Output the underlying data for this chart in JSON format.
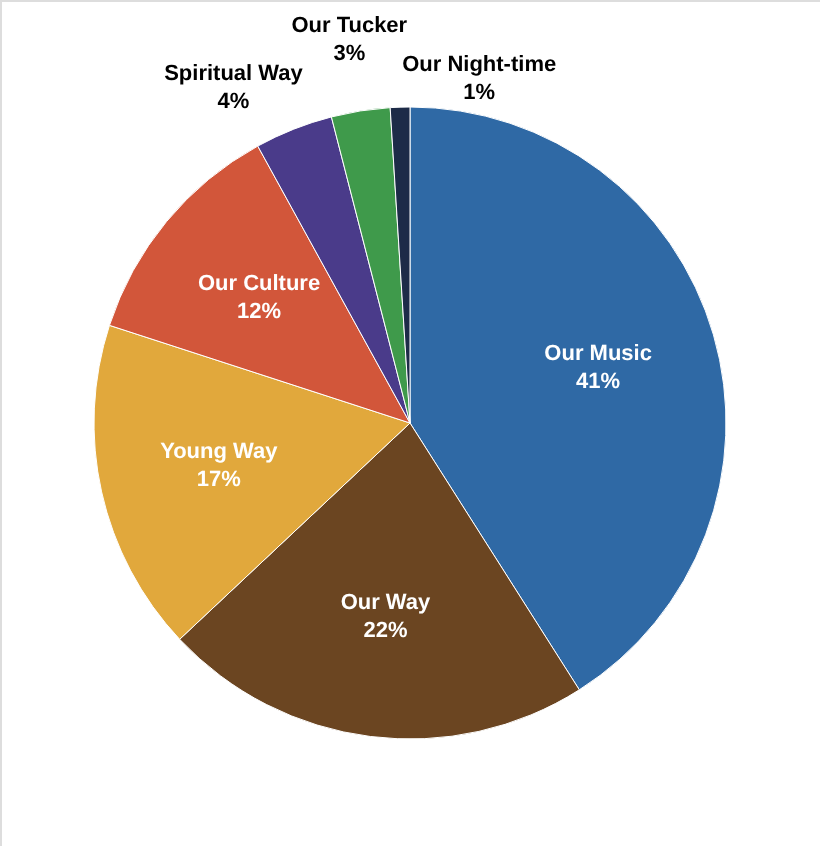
{
  "chart_data": {
    "type": "pie",
    "categories": [
      "Our Music",
      "Our Way",
      "Young Way",
      "Our Culture",
      "Spiritual Way",
      "Our Tucker",
      "Our Night-time"
    ],
    "values": [
      41,
      22,
      17,
      12,
      4,
      3,
      1
    ],
    "value_labels": [
      "41%",
      "22%",
      "17%",
      "12%",
      "4%",
      "3%",
      "1%"
    ],
    "colors": [
      "#2f69a5",
      "#6b4521",
      "#e1a83c",
      "#d2563a",
      "#4a3b8a",
      "#3f9a4b",
      "#1d2b48"
    ]
  }
}
